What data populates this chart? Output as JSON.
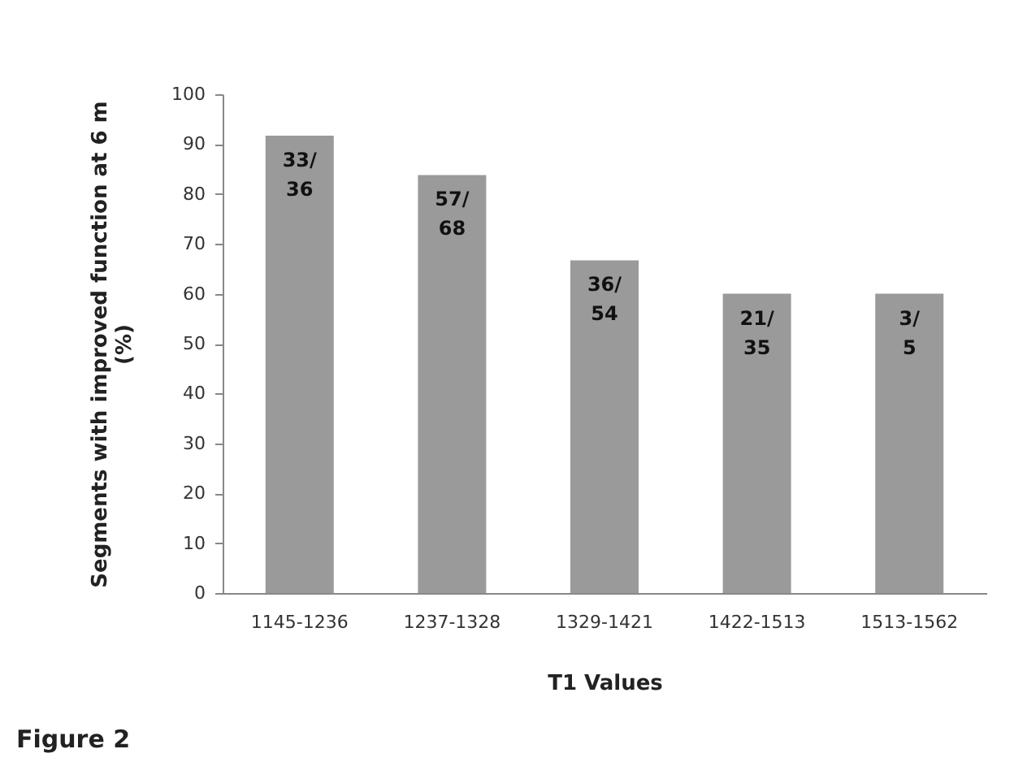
{
  "chart_data": {
    "type": "bar",
    "xlabel": "T1 Values",
    "ylabel": "Segments with improved function at 6 m (%)",
    "categories": [
      "1145-1236",
      "1237-1328",
      "1329-1421",
      "1422-1513",
      "1513-1562"
    ],
    "values": [
      91.7,
      83.8,
      66.7,
      60,
      60
    ],
    "color": "#9a9a9a",
    "ylim": [
      0,
      100
    ],
    "yticks": [
      0,
      10,
      20,
      30,
      40,
      50,
      60,
      70,
      80,
      90,
      100
    ],
    "grid": false,
    "annotations": [
      {
        "text": "33/36",
        "x": "1145-1236",
        "y": 91.7
      },
      {
        "text": "57/68",
        "x": "1237-1328",
        "y": 83.8
      },
      {
        "text": "36/54",
        "x": "1329-1421",
        "y": 66.7
      },
      {
        "text": "21/35",
        "x": "1422-1513",
        "y": 60
      },
      {
        "text": "3/5",
        "x": "1513-1562",
        "y": 60
      },
      "Figure 2"
    ]
  }
}
